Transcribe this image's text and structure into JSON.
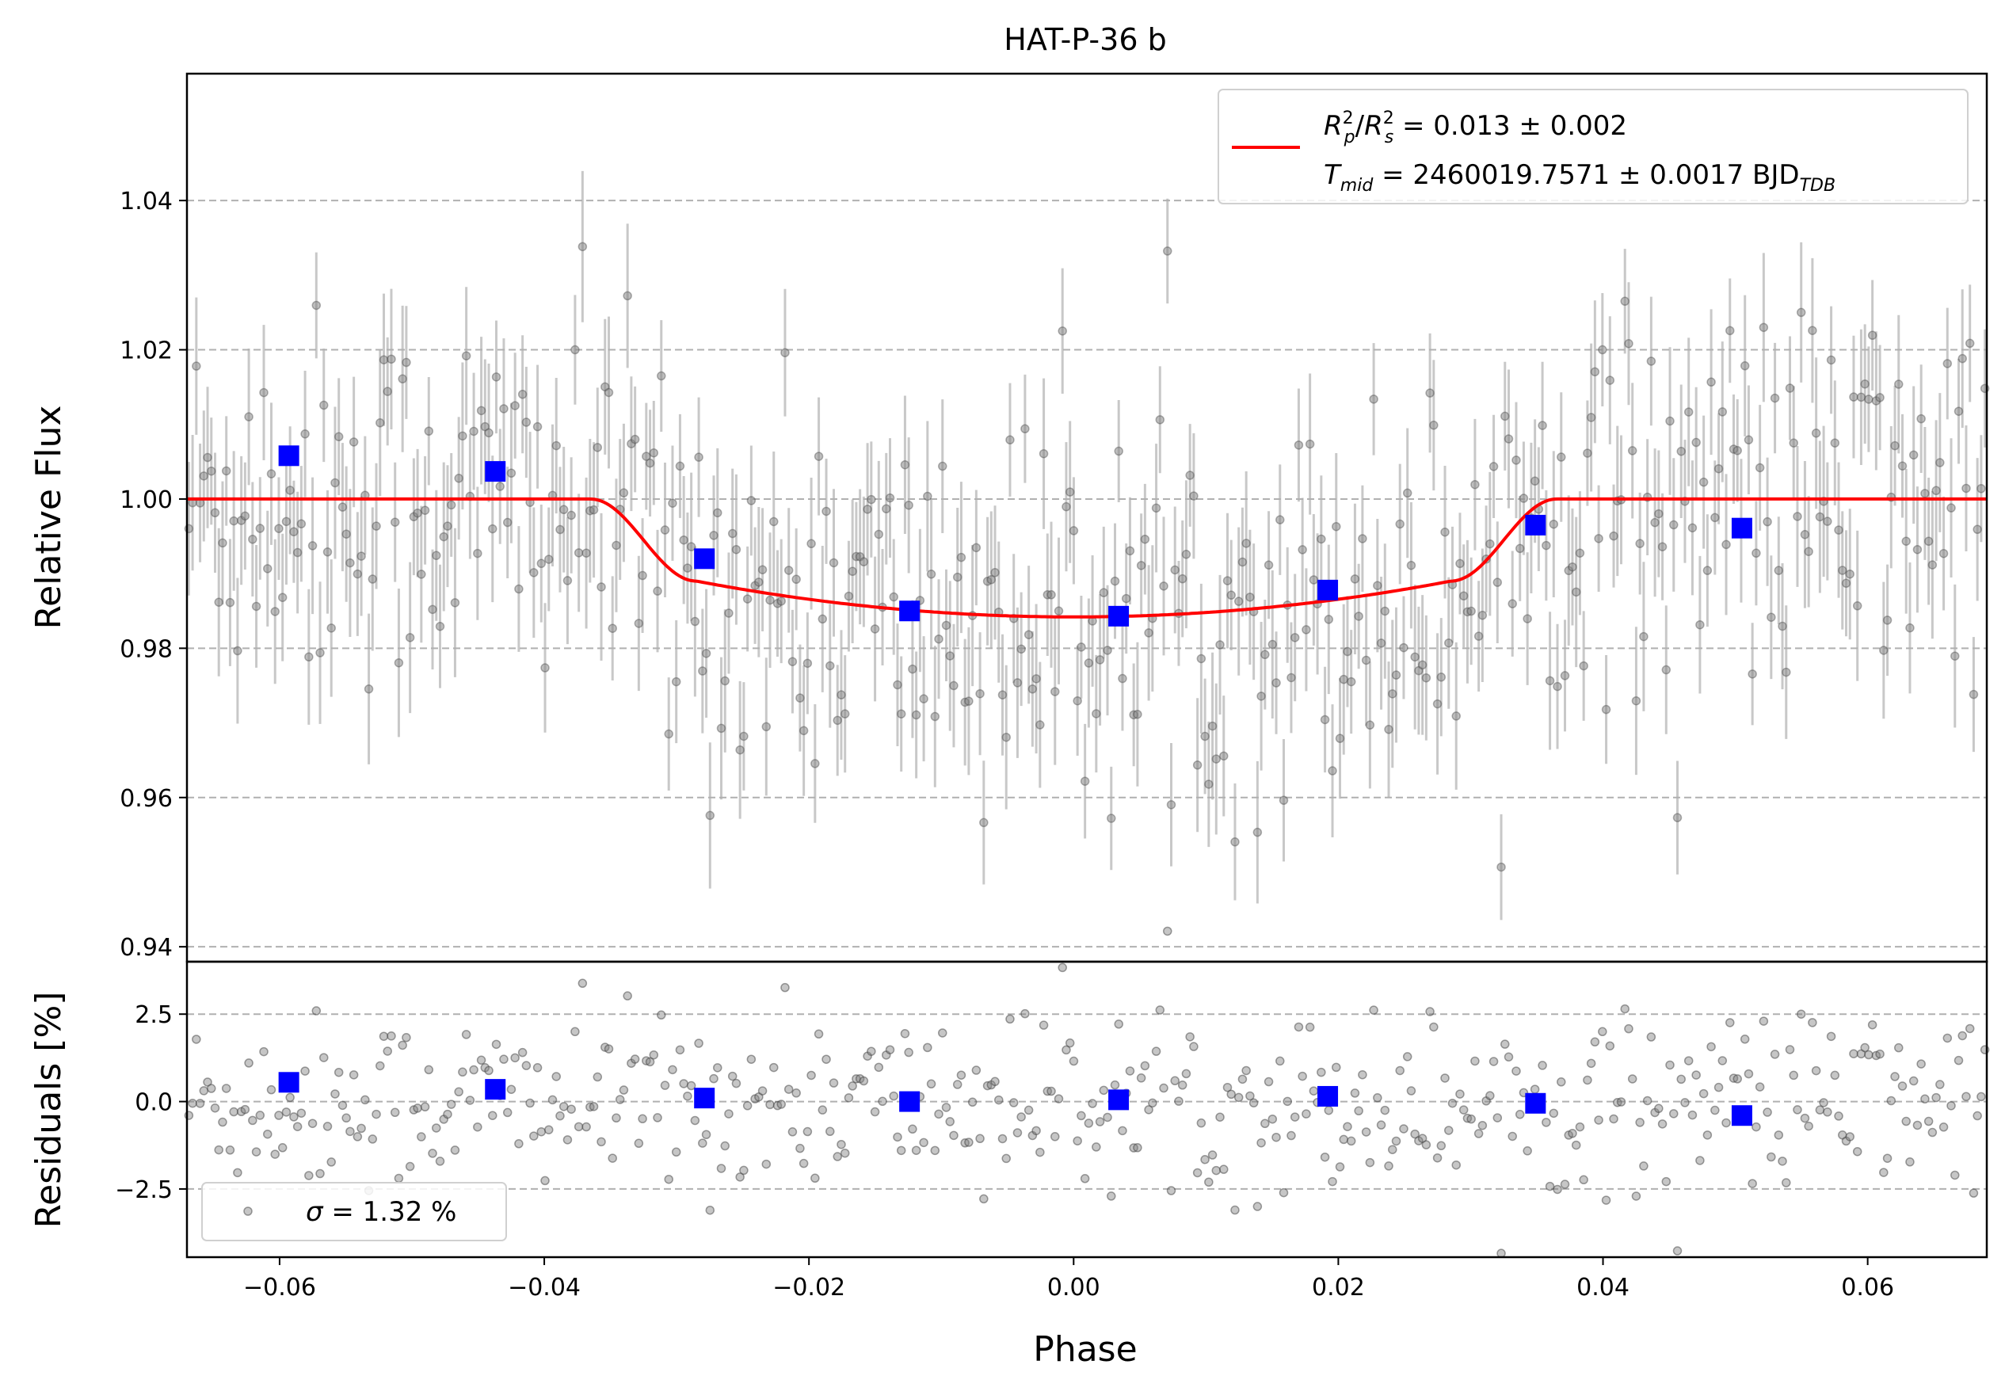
{
  "chart_data": [
    {
      "type": "scatter",
      "panel": "top",
      "title": "HAT-P-36 b",
      "ylabel": "Relative Flux",
      "xlim": [
        -0.067,
        0.069
      ],
      "ylim": [
        0.938,
        1.057
      ],
      "yticks": [
        0.94,
        0.96,
        0.98,
        1.0,
        1.02,
        1.04
      ],
      "ytick_labels": [
        "0.94",
        "0.96",
        "0.98",
        "1.00",
        "1.02",
        "1.04"
      ],
      "grid": "horizontal dashed",
      "legend_position": "top-right",
      "legend": {
        "line1": {
          "r": "R",
          "p": "p",
          "s": "s",
          "two": "2",
          "slash": "/",
          "value": " = 0.013 ± 0.002"
        },
        "line2": {
          "t": "T",
          "mid": "mid",
          "value": " = 2460019.7571 ± 0.0017 BJD",
          "tdb": "TDB"
        }
      },
      "model": {
        "depth": 0.0158,
        "t_ingress_start": -0.0365,
        "t_ingress_end": -0.0285,
        "t_egress_start": 0.0285,
        "t_egress_end": 0.0365
      },
      "binned": {
        "x": [
          -0.0593,
          -0.0437,
          -0.0279,
          -0.0124,
          0.0034,
          0.0192,
          0.0349,
          0.0505
        ],
        "y": [
          1.0058,
          1.0037,
          0.992,
          0.985,
          0.9843,
          0.9878,
          0.9965,
          0.9961
        ]
      },
      "raw_points": {
        "n": 480,
        "x_range": [
          -0.067,
          0.069
        ],
        "typical_error": 0.0085
      },
      "colors": {
        "raw": "#808080",
        "model": "#ff0000",
        "binned": "#0000ff",
        "grid": "#b0b0b0"
      }
    },
    {
      "type": "scatter",
      "panel": "bottom",
      "xlabel": "Phase",
      "ylabel": "Residuals [%]",
      "xlim": [
        -0.067,
        0.069
      ],
      "ylim": [
        -4.45,
        4.0
      ],
      "xticks": [
        -0.06,
        -0.04,
        -0.02,
        0.0,
        0.02,
        0.04,
        0.06
      ],
      "xtick_labels": [
        "−0.06",
        "−0.04",
        "−0.02",
        "0.00",
        "0.02",
        "0.04",
        "0.06"
      ],
      "yticks": [
        -2.5,
        0.0,
        2.5
      ],
      "ytick_labels": [
        "−2.5",
        "0.0",
        "2.5"
      ],
      "grid": "horizontal dashed",
      "legend_position": "bottom-left",
      "legend": {
        "sigma": "σ",
        "value": " = 1.32 %"
      },
      "binned": {
        "x": [
          -0.0593,
          -0.0437,
          -0.0279,
          -0.0124,
          0.0034,
          0.0192,
          0.0349,
          0.0505
        ],
        "y": [
          0.55,
          0.35,
          0.1,
          0.0,
          0.05,
          0.15,
          -0.05,
          -0.4
        ]
      },
      "raw_points": {
        "n": 480,
        "sigma_percent": 1.32
      }
    }
  ]
}
